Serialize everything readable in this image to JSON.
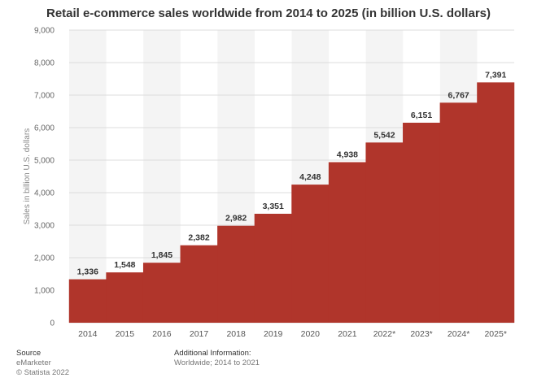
{
  "chart_data": {
    "type": "bar",
    "title": "Retail e-commerce sales worldwide from 2014 to 2025 (in billion U.S. dollars)",
    "ylabel": "Sales in billion U.S. dollars",
    "xlabel": "",
    "categories": [
      "2014",
      "2015",
      "2016",
      "2017",
      "2018",
      "2019",
      "2020",
      "2021",
      "2022*",
      "2023*",
      "2024*",
      "2025*"
    ],
    "values": [
      1336,
      1548,
      1845,
      2382,
      2982,
      3351,
      4248,
      4938,
      5542,
      6151,
      6767,
      7391
    ],
    "value_labels": [
      "1,336",
      "1,548",
      "1,845",
      "2,382",
      "2,982",
      "3,351",
      "4,248",
      "4,938",
      "5,542",
      "6,151",
      "6,767",
      "7,391"
    ],
    "ylim": [
      0,
      9000
    ],
    "yticks": [
      0,
      1000,
      2000,
      3000,
      4000,
      5000,
      6000,
      7000,
      8000,
      9000
    ],
    "ytick_labels": [
      "0",
      "1,000",
      "2,000",
      "3,000",
      "4,000",
      "5,000",
      "6,000",
      "7,000",
      "8,000",
      "9,000"
    ],
    "bar_color": "#b0352b",
    "grid": true,
    "grid_color": "#dcdcdc",
    "column_shading": "#f4f4f4"
  },
  "footer": {
    "source_heading": "Source",
    "source_name": "eMarketer",
    "copyright": "© Statista 2022",
    "additional_heading": "Additional Information:",
    "additional_text": "Worldwide; 2014 to 2021"
  }
}
